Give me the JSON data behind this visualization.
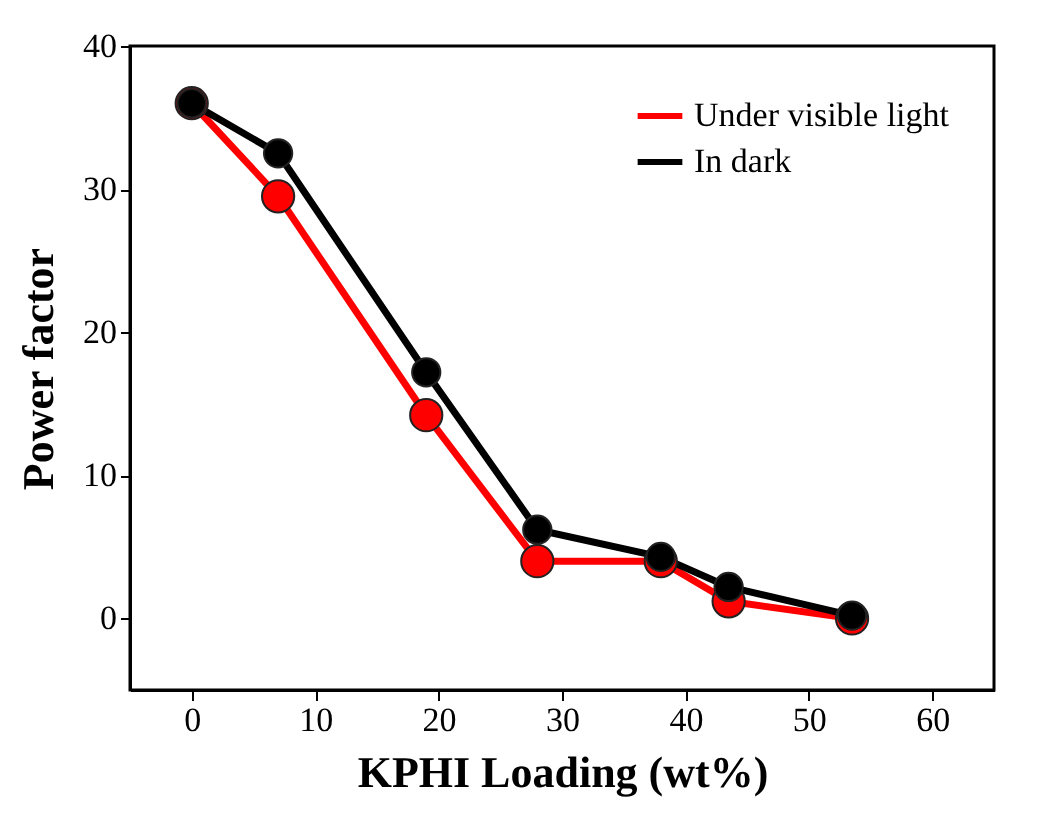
{
  "chart_data": {
    "type": "line",
    "xlabel": "KPHI Loading (wt%)",
    "ylabel": "Power factor",
    "x": [
      0,
      7,
      19,
      28,
      38,
      43.5,
      53.5
    ],
    "series": [
      {
        "name": "Under visible light",
        "color": "#ff0000",
        "values": [
          36,
          29.5,
          14.2,
          4,
          4,
          1.2,
          0
        ]
      },
      {
        "name": "In dark",
        "color": "#000000",
        "values": [
          36,
          32.5,
          17.2,
          6.2,
          4.3,
          2.2,
          0.2
        ]
      }
    ],
    "xlim": [
      -5,
      65
    ],
    "xticks": [
      0,
      10,
      20,
      30,
      40,
      50,
      60
    ],
    "ylim": [
      -5,
      40
    ],
    "yticks": [
      0,
      10,
      20,
      30,
      40
    ],
    "grid": false,
    "legend": "top right",
    "marker": "circle",
    "line_style": "solid"
  }
}
